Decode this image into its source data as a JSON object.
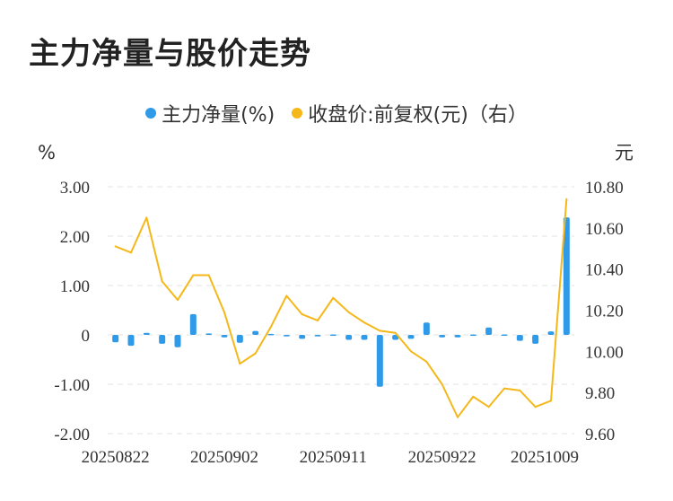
{
  "title": "主力净量与股价走势",
  "legend": [
    {
      "label": "主力净量(%)",
      "color": "#2f9ae8"
    },
    {
      "label": "收盘价:前复权(元)（右）",
      "color": "#f5b81a"
    }
  ],
  "chart_data": {
    "type": "bar+line",
    "left_unit": "%",
    "right_unit": "元",
    "y_left": {
      "min": -2,
      "max": 3,
      "ticks": [
        "3.00",
        "2.00",
        "1.00",
        "0",
        "-1.00",
        "-2.00"
      ],
      "tick_values": [
        3,
        2,
        1,
        0,
        -1,
        -2
      ]
    },
    "y_right": {
      "min": 9.6,
      "max": 10.8,
      "ticks": [
        "10.80",
        "10.60",
        "10.40",
        "10.20",
        "10.00",
        "9.80",
        "9.60"
      ],
      "tick_values": [
        10.8,
        10.6,
        10.4,
        10.2,
        10.0,
        9.8,
        9.6
      ]
    },
    "x_tick_labels": [
      {
        "label": "20250822",
        "index": 0
      },
      {
        "label": "20250902",
        "index": 7
      },
      {
        "label": "20250911",
        "index": 14
      },
      {
        "label": "20250922",
        "index": 21
      },
      {
        "label": "20251009",
        "index": 28
      }
    ],
    "series": [
      {
        "name": "主力净量(%)",
        "kind": "bar",
        "axis": "left",
        "color": "#2f9ae8",
        "values": [
          -0.15,
          -0.22,
          0.04,
          -0.18,
          -0.25,
          0.42,
          0.03,
          -0.05,
          -0.16,
          0.08,
          0.02,
          -0.03,
          -0.08,
          -0.03,
          0.01,
          -0.1,
          -0.1,
          -1.05,
          -0.1,
          -0.08,
          0.25,
          -0.05,
          -0.05,
          0.01,
          0.15,
          0.01,
          -0.12,
          -0.18,
          0.07,
          2.38
        ]
      },
      {
        "name": "收盘价:前复权(元)（右）",
        "kind": "line",
        "axis": "right",
        "color": "#f5b81a",
        "values": [
          10.51,
          10.48,
          10.65,
          10.34,
          10.25,
          10.37,
          10.37,
          10.19,
          9.94,
          9.99,
          10.12,
          10.27,
          10.18,
          10.15,
          10.26,
          10.19,
          10.14,
          10.1,
          10.09,
          10.0,
          9.95,
          9.84,
          9.68,
          9.78,
          9.73,
          9.82,
          9.81,
          9.73,
          9.76,
          10.74
        ]
      }
    ]
  }
}
